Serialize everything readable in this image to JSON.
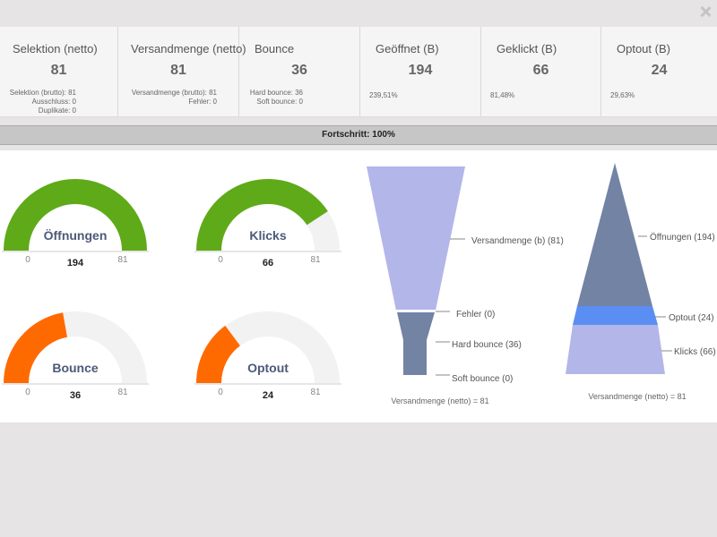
{
  "stats": [
    {
      "title": "Selektion (netto)",
      "value": "81",
      "details": [
        "Selektion (brutto): 81",
        "Ausschluss: 0",
        "Duplikate: 0"
      ]
    },
    {
      "title": "Versandmenge (netto)",
      "value": "81",
      "details": [
        "Versandmenge (brutto): 81",
        "Fehler: 0"
      ]
    },
    {
      "title": "Bounce",
      "value": "36",
      "details": [
        "Hard bounce: 36",
        "Soft bounce: 0"
      ]
    },
    {
      "title": "Geöffnet (B)",
      "value": "194",
      "details": [
        "239,51%"
      ]
    },
    {
      "title": "Geklickt (B)",
      "value": "66",
      "details": [
        "81,48%"
      ]
    },
    {
      "title": "Optout (B)",
      "value": "24",
      "details": [
        "29,63%"
      ]
    }
  ],
  "progress": {
    "label": "Fortschritt: 100%",
    "percent": 100
  },
  "gauges": [
    {
      "title": "Öffnungen",
      "value": 194,
      "value_label": "194",
      "min": 0,
      "max": 81,
      "min_label": "0",
      "max_label": "81",
      "color": "#5faa18"
    },
    {
      "title": "Klicks",
      "value": 66,
      "value_label": "66",
      "min": 0,
      "max": 81,
      "min_label": "0",
      "max_label": "81",
      "color": "#5faa18"
    },
    {
      "title": "Bounce",
      "value": 36,
      "value_label": "36",
      "min": 0,
      "max": 81,
      "min_label": "0",
      "max_label": "81",
      "color": "#ff6a00"
    },
    {
      "title": "Optout",
      "value": 24,
      "value_label": "24",
      "min": 0,
      "max": 81,
      "min_label": "0",
      "max_label": "81",
      "color": "#ff6a00"
    }
  ],
  "funnel": {
    "labels": [
      "Versandmenge (b) (81)",
      "Fehler (0)",
      "Hard bounce (36)",
      "Soft bounce (0)"
    ],
    "footer": "Versandmenge (netto) = 81",
    "colors": {
      "top": "#b3b6e8",
      "bottom": "#7383a4"
    }
  },
  "pyramid": {
    "labels": [
      "Öffnungen (194)",
      "Optout (24)",
      "Klicks (66)"
    ],
    "footer": "Versandmenge (netto) = 81",
    "colors": {
      "top": "#7383a4",
      "middle": "#5b8ef2",
      "bottom": "#b3b6e8"
    }
  },
  "colors": {
    "gauge_track": "#f2f2f2",
    "leader": "#888888"
  }
}
